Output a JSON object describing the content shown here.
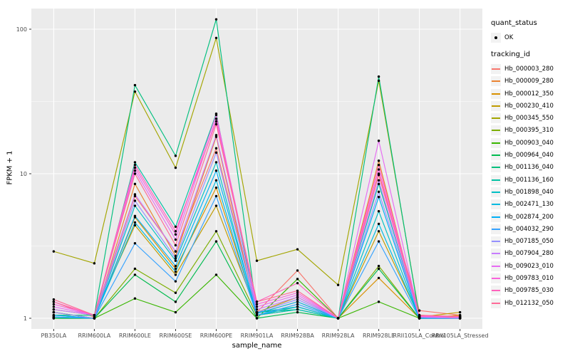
{
  "colors": {
    "panel_background": "#EBEBEB",
    "grid": "#FFFFFF",
    "point": "#000000",
    "tick_label": "#4D4D4D",
    "legend_key_background": "#F2F2F2"
  },
  "legend": {
    "quant_status_title": "quant_status",
    "quant_status_items": [
      {
        "label": "OK",
        "marker": "point"
      }
    ],
    "tracking_id_title": "tracking_id"
  },
  "chart_data": {
    "type": "line",
    "title": "",
    "xlabel": "sample_name",
    "ylabel": "FPKM + 1",
    "y_scale": "log10",
    "ylim": [
      0.85,
      139
    ],
    "y_ticks": [
      1,
      10,
      100
    ],
    "y_minor_ticks": [
      3.1623,
      31.623
    ],
    "grid": true,
    "legend_position": "right",
    "categories": [
      "PB350LA",
      "RRIM600LA",
      "RRIM600LE",
      "RRIM600SE",
      "RRIM600PE",
      "RRIM901LA",
      "RRIM928BA",
      "RRIM928LA",
      "RRIM928LE",
      "RRII105LA_Control",
      "RRII105LA_Stressed"
    ],
    "series": [
      {
        "name": "Hb_000003_280",
        "color": "#F8766D",
        "values": [
          1.3,
          1.02,
          7.0,
          2.9,
          15.0,
          1.1,
          2.14,
          1.0,
          10.0,
          1.13,
          1.05
        ]
      },
      {
        "name": "Hb_000009_280",
        "color": "#EA8331",
        "values": [
          1.05,
          1.0,
          8.5,
          2.7,
          18.0,
          1.05,
          1.2,
          1.0,
          12.3,
          1.0,
          1.02
        ]
      },
      {
        "name": "Hb_000012_350",
        "color": "#D89000",
        "values": [
          1.1,
          1.0,
          5.0,
          2.2,
          8.0,
          1.08,
          1.3,
          1.0,
          1.9,
          1.0,
          1.05
        ]
      },
      {
        "name": "Hb_000230_410",
        "color": "#C09B00",
        "values": [
          1.15,
          1.05,
          4.4,
          2.0,
          6.0,
          1.1,
          1.4,
          1.0,
          4.0,
          1.02,
          1.1
        ]
      },
      {
        "name": "Hb_000345_550",
        "color": "#A3A500",
        "values": [
          2.9,
          2.4,
          37.0,
          11.0,
          87.0,
          2.5,
          3.0,
          1.7,
          44.0,
          1.05,
          1.02
        ]
      },
      {
        "name": "Hb_000395_310",
        "color": "#7CAE00",
        "values": [
          1.1,
          1.0,
          2.2,
          1.5,
          4.0,
          1.05,
          1.15,
          1.0,
          2.3,
          1.0,
          1.0
        ]
      },
      {
        "name": "Hb_000903_040",
        "color": "#39B600",
        "values": [
          1.0,
          1.0,
          1.37,
          1.1,
          2.0,
          1.0,
          1.87,
          1.0,
          1.3,
          1.0,
          1.0
        ]
      },
      {
        "name": "Hb_000964_040",
        "color": "#00BB4E",
        "values": [
          1.0,
          1.0,
          2.0,
          1.3,
          3.4,
          1.0,
          1.1,
          1.0,
          2.2,
          1.0,
          1.0
        ]
      },
      {
        "name": "Hb_001136_040",
        "color": "#00BF7D",
        "values": [
          1.05,
          1.05,
          41.0,
          13.3,
          117.0,
          1.1,
          1.15,
          1.0,
          47.0,
          1.02,
          1.0
        ]
      },
      {
        "name": "Hb_001136_160",
        "color": "#00C1A3",
        "values": [
          1.05,
          1.0,
          12.0,
          4.3,
          26.0,
          1.1,
          1.2,
          1.0,
          8.5,
          1.02,
          1.0
        ]
      },
      {
        "name": "Hb_001898_040",
        "color": "#00BFC4",
        "values": [
          1.02,
          1.0,
          6.0,
          2.5,
          12.0,
          1.05,
          1.15,
          1.0,
          5.5,
          1.0,
          1.0
        ]
      },
      {
        "name": "Hb_002471_130",
        "color": "#00BAE0",
        "values": [
          1.02,
          1.0,
          4.6,
          2.1,
          9.0,
          1.05,
          1.2,
          1.0,
          4.5,
          1.0,
          1.0
        ]
      },
      {
        "name": "Hb_002874_200",
        "color": "#00B0F6",
        "values": [
          1.05,
          1.0,
          5.1,
          2.3,
          10.5,
          1.08,
          1.3,
          1.0,
          6.9,
          1.0,
          1.0
        ]
      },
      {
        "name": "Hb_004032_290",
        "color": "#35A2FF",
        "values": [
          1.02,
          1.0,
          3.3,
          1.8,
          7.0,
          1.05,
          1.25,
          1.0,
          3.4,
          1.0,
          1.0
        ]
      },
      {
        "name": "Hb_007185_050",
        "color": "#9590FF",
        "values": [
          1.1,
          1.0,
          6.5,
          2.6,
          14.0,
          1.1,
          1.35,
          1.0,
          7.5,
          1.02,
          1.0
        ]
      },
      {
        "name": "Hb_007904_280",
        "color": "#C77CFF",
        "values": [
          1.15,
          1.05,
          7.2,
          2.9,
          18.5,
          1.15,
          1.4,
          1.0,
          9.0,
          1.02,
          1.0
        ]
      },
      {
        "name": "Hb_009023_010",
        "color": "#E76BF3",
        "values": [
          1.2,
          1.05,
          10.5,
          3.5,
          24.0,
          1.2,
          1.45,
          1.0,
          16.9,
          1.03,
          1.02
        ]
      },
      {
        "name": "Hb_009783_010",
        "color": "#FA62DB",
        "values": [
          1.25,
          1.05,
          11.0,
          3.8,
          25.5,
          1.25,
          1.5,
          1.0,
          10.7,
          1.03,
          1.02
        ]
      },
      {
        "name": "Hb_009785_030",
        "color": "#FF62BC",
        "values": [
          1.3,
          1.05,
          11.5,
          4.0,
          23.0,
          1.3,
          1.75,
          1.0,
          11.5,
          1.04,
          1.03
        ]
      },
      {
        "name": "Hb_012132_050",
        "color": "#FF6A98",
        "values": [
          1.35,
          1.05,
          10.0,
          3.2,
          22.0,
          1.3,
          1.55,
          1.0,
          9.8,
          1.05,
          1.03
        ]
      }
    ]
  }
}
